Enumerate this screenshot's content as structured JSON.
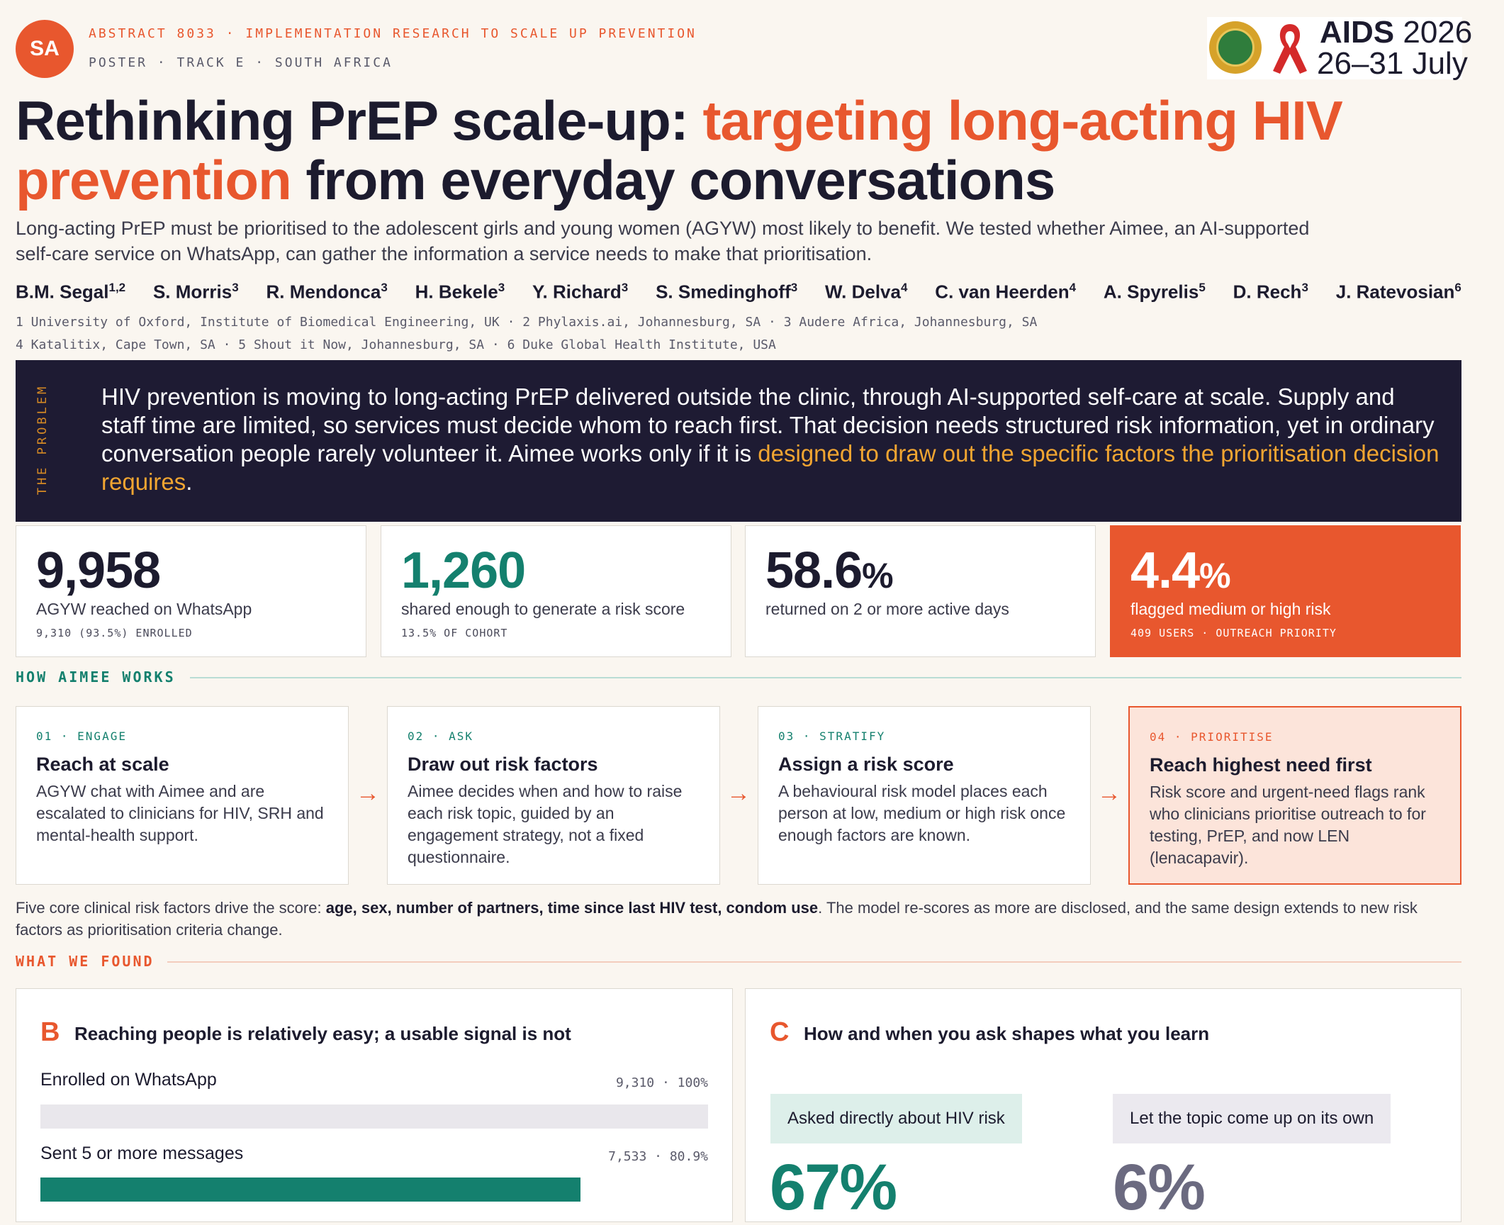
{
  "header": {
    "badge": "SA",
    "abstract_line": "ABSTRACT 8033 · IMPLEMENTATION RESEARCH TO SCALE UP PREVENTION",
    "poster_line": "POSTER · TRACK E · SOUTH AFRICA",
    "conference_name": "AIDS",
    "conference_year": "2026",
    "conference_dates": "26–31 July",
    "logo_icons": [
      "seal-logo",
      "red-ribbon"
    ]
  },
  "title": {
    "part1": "Rethinking PrEP scale-up: ",
    "part2": "targeting long-acting HIV prevention",
    "part3": " from everyday conversations"
  },
  "lede": "Long-acting PrEP must be prioritised to the adolescent girls and young women (AGYW) most likely to benefit. We tested whether Aimee, an AI-supported self-care service on WhatsApp, can gather the information a service needs to make that prioritisation.",
  "authors": [
    {
      "name": "B.M. Segal",
      "aff": "1,2"
    },
    {
      "name": "S. Morris",
      "aff": "3"
    },
    {
      "name": "R. Mendonca",
      "aff": "3"
    },
    {
      "name": "H. Bekele",
      "aff": "3"
    },
    {
      "name": "Y. Richard",
      "aff": "3"
    },
    {
      "name": "S. Smedinghoff",
      "aff": "3"
    },
    {
      "name": "W. Delva",
      "aff": "4"
    },
    {
      "name": "C. van Heerden",
      "aff": "4"
    },
    {
      "name": "A. Spyrelis",
      "aff": "5"
    },
    {
      "name": "D. Rech",
      "aff": "3"
    },
    {
      "name": "J. Ratevosian",
      "aff": "6"
    }
  ],
  "affiliations": {
    "line1": "1 University of Oxford, Institute of Biomedical Engineering, UK  ·  2 Phylaxis.ai, Johannesburg, SA  ·  3 Audere Africa, Johannesburg, SA",
    "line2": "4 Katalitix, Cape Town, SA  ·  5 Shout it Now, Johannesburg, SA  ·  6 Duke Global Health Institute, USA"
  },
  "problem": {
    "label": "THE PROBLEM",
    "text": "HIV prevention is moving to long-acting PrEP delivered outside the clinic, through AI-supported self-care at scale. Supply and staff time are limited, so services must decide whom to reach first. That decision needs structured risk information, yet in ordinary conversation people rarely volunteer it. Aimee works only if it is ",
    "highlight": "designed to draw out the specific factors the prioritisation decision requires",
    "end": "."
  },
  "stats": [
    {
      "value": "9,958",
      "pct": "",
      "label": "AGYW reached on WhatsApp",
      "sub": "9,310 (93.5%) ENROLLED"
    },
    {
      "value": "1,260",
      "pct": "",
      "label": "shared enough to generate a risk score",
      "sub": "13.5% OF COHORT"
    },
    {
      "value": "58.6",
      "pct": "%",
      "label": "returned on 2 or more active days",
      "sub": ""
    },
    {
      "value": "4.4",
      "pct": "%",
      "label": "flagged medium or high risk",
      "sub": "409 USERS · OUTREACH PRIORITY"
    }
  ],
  "how": {
    "heading": "HOW AIMEE WORKS",
    "steps": [
      {
        "tag": "01 · ENGAGE",
        "title": "Reach at scale",
        "desc": "AGYW chat with Aimee and are escalated to clinicians for HIV, SRH and mental-health support."
      },
      {
        "tag": "02 · ASK",
        "title": "Draw out risk factors",
        "desc": "Aimee decides when and how to raise each risk topic, guided by an engagement strategy, not a fixed questionnaire."
      },
      {
        "tag": "03 · STRATIFY",
        "title": "Assign a risk score",
        "desc": "A behavioural risk model places each person at low, medium or high risk once enough factors are known."
      },
      {
        "tag": "04 · PRIORITISE",
        "title": "Reach highest need first",
        "desc": "Risk score and urgent-need flags rank who clinicians prioritise outreach to for testing, PrEP, and now LEN (lenacapavir)."
      }
    ],
    "arrow_glyph": "→",
    "note_pre": "Five core clinical risk factors drive the score: ",
    "note_bold": "age, sex, number of partners, time since last HIV test, condom use",
    "note_post": ". The model re-scores as more are disclosed, and the same design extends to new risk factors as prioritisation criteria change."
  },
  "found": {
    "heading": "WHAT WE FOUND",
    "panel_b": {
      "letter": "B",
      "title": "Reaching people is relatively easy; a usable signal is not",
      "rows": [
        {
          "label": "Enrolled on WhatsApp",
          "count": "9,310",
          "pct": "100%",
          "fraction": 1.0
        },
        {
          "label": "Sent 5 or more messages",
          "count": "7,533",
          "pct": "80.9%",
          "fraction": 0.809
        }
      ],
      "colors": {
        "track": "#e9e7ec",
        "fill": "#14806e"
      }
    },
    "panel_c": {
      "letter": "C",
      "title": "How and when you ask shapes what you learn",
      "left": {
        "chip": "Asked directly about HIV risk",
        "value": "67%",
        "color": "#14806e"
      },
      "right": {
        "chip": "Let the topic come up on its own",
        "value": "6%",
        "color": "#6b6a80"
      }
    }
  },
  "colors": {
    "accent": "#e8572e",
    "teal": "#14806e",
    "navy": "#1e1b33",
    "gold": "#f1a531"
  }
}
